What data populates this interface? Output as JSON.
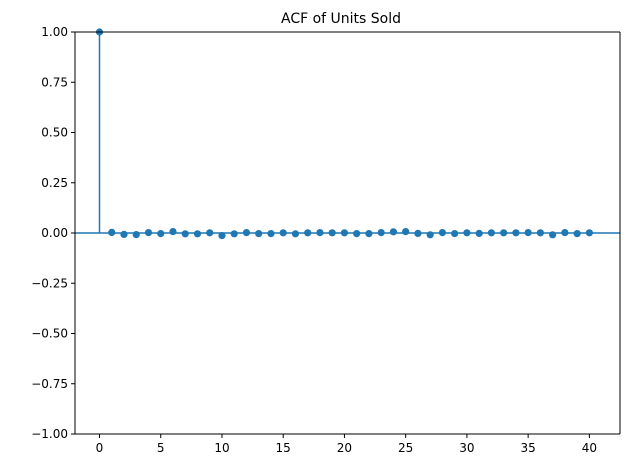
{
  "chart_data": {
    "type": "stem",
    "title": "ACF of Units Sold",
    "xlabel": "",
    "ylabel": "",
    "xlim": [
      -2,
      42.5
    ],
    "ylim": [
      -1.0,
      1.0
    ],
    "xticks": [
      0,
      5,
      10,
      15,
      20,
      25,
      30,
      35,
      40
    ],
    "yticks": [
      "-1.00",
      "-0.75",
      "-0.50",
      "-0.25",
      "0.00",
      "0.25",
      "0.50",
      "0.75",
      "1.00"
    ],
    "grid": false,
    "legend": "none",
    "colors": {
      "series": "#1f77b4",
      "axes": "#000000"
    },
    "series": [
      {
        "lags": [
          0,
          1,
          2,
          3,
          4,
          5,
          6,
          7,
          8,
          9,
          10,
          11,
          12,
          13,
          14,
          15,
          16,
          17,
          18,
          19,
          20,
          21,
          22,
          23,
          24,
          25,
          26,
          27,
          28,
          29,
          30,
          31,
          32,
          33,
          34,
          35,
          36,
          37,
          38,
          39,
          40
        ],
        "values": [
          1.0,
          0.003,
          -0.007,
          -0.008,
          0.002,
          -0.003,
          0.007,
          -0.004,
          -0.004,
          0.001,
          -0.013,
          -0.004,
          0.002,
          -0.003,
          -0.003,
          0.001,
          -0.004,
          0.001,
          0.002,
          0.001,
          0.001,
          -0.003,
          -0.003,
          0.002,
          0.006,
          0.007,
          -0.002,
          -0.009,
          0.002,
          -0.003,
          0.001,
          -0.002,
          0.001,
          0.001,
          0.001,
          0.002,
          0.001,
          -0.009,
          0.002,
          -0.003,
          0.001
        ]
      }
    ]
  }
}
